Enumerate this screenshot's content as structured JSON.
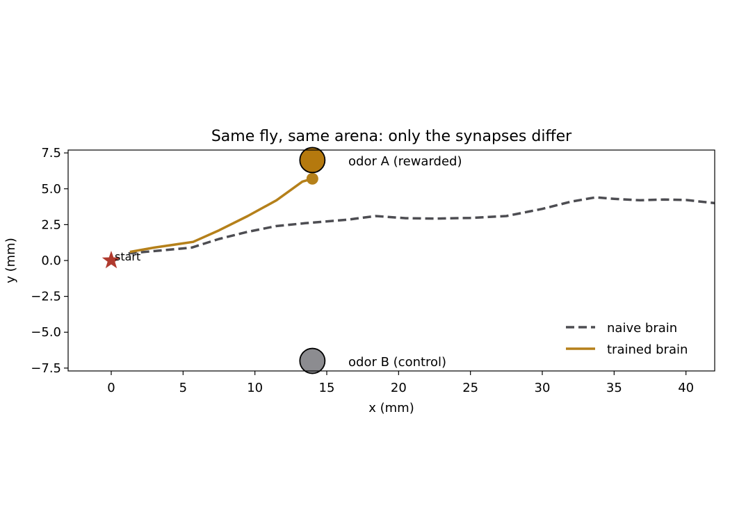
{
  "chart_data": {
    "type": "line",
    "title": "Same fly, same arena: only the synapses differ",
    "xlabel": "x (mm)",
    "ylabel": "y (mm)",
    "xlim": [
      -3,
      42
    ],
    "ylim": [
      -7.7,
      7.7
    ],
    "xticks": [
      0,
      5,
      10,
      15,
      20,
      25,
      30,
      35,
      40
    ],
    "yticks": [
      -7.5,
      -5.0,
      -2.5,
      0.0,
      2.5,
      5.0,
      7.5
    ],
    "xtick_labels": [
      "0",
      "5",
      "10",
      "15",
      "20",
      "25",
      "30",
      "35",
      "40"
    ],
    "ytick_labels": [
      "−7.5",
      "−5.0",
      "−2.5",
      "0.0",
      "2.5",
      "5.0",
      "7.5"
    ],
    "grid": false,
    "legend_position": "lower-right",
    "series": [
      {
        "name": "naive brain",
        "style": "dashed",
        "color": "#4d4d52",
        "x": [
          1.2,
          3.5,
          5.6,
          7.5,
          9.5,
          11.5,
          13.5,
          16.5,
          18.4,
          20.5,
          22.5,
          25.0,
          27.5,
          30.0,
          32.0,
          33.7,
          35.0,
          36.8,
          38.5,
          40.0,
          42.0
        ],
        "y": [
          0.5,
          0.7,
          0.9,
          1.5,
          2.0,
          2.4,
          2.6,
          2.85,
          3.1,
          2.95,
          2.92,
          2.97,
          3.1,
          3.6,
          4.1,
          4.4,
          4.3,
          4.2,
          4.25,
          4.22,
          4.0
        ]
      },
      {
        "name": "trained brain",
        "style": "solid",
        "color": "#b5801a",
        "x": [
          1.3,
          3.0,
          5.7,
          7.5,
          9.5,
          11.5,
          13.3,
          14.0
        ],
        "y": [
          0.6,
          0.9,
          1.3,
          2.1,
          3.1,
          4.2,
          5.5,
          5.7
        ],
        "end_marker": true
      }
    ],
    "points": [
      {
        "label": "odor A (rewarded)",
        "x": 14,
        "y": 7,
        "color": "#b5790e"
      },
      {
        "label": "odor B (control)",
        "x": 14,
        "y": -7,
        "color": "#8c8c90"
      }
    ],
    "start": {
      "label": "start",
      "x": 0,
      "y": 0,
      "color": "#b03a2e"
    }
  }
}
